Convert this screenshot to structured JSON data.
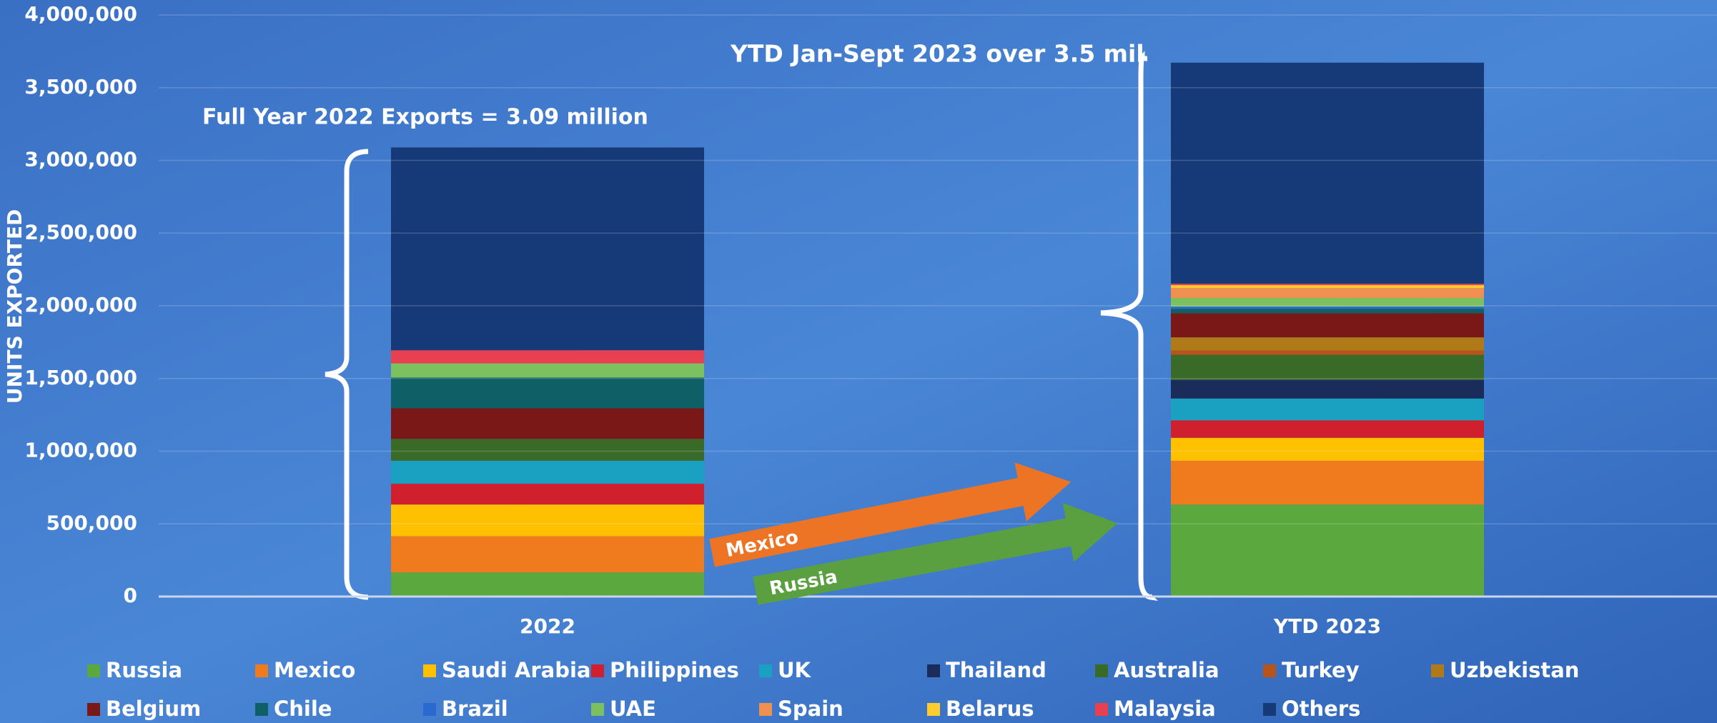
{
  "chart_data": {
    "type": "stacked_bar",
    "y_label": "UNITS EXPORTED",
    "categories": [
      "2022",
      "YTD 2023"
    ],
    "annotations": [
      "Full Year 2022 Exports = 3.09 million",
      "YTD Jan-Sept 2023 over 3.5 mil",
      "Mexico",
      "Russia"
    ],
    "ylim": [
      0,
      4000000
    ],
    "yticks": [
      {
        "value": 0,
        "label": "0"
      },
      {
        "value": 500000,
        "label": "500,000"
      },
      {
        "value": 1000000,
        "label": "1,000,000"
      },
      {
        "value": 1500000,
        "label": "1,500,000"
      },
      {
        "value": 2000000,
        "label": "2,000,000"
      },
      {
        "value": 2500000,
        "label": "2,500,000"
      },
      {
        "value": 3000000,
        "label": "3,000,000"
      },
      {
        "value": 3500000,
        "label": "3,500,000"
      },
      {
        "value": 4000000,
        "label": "4,000,000"
      }
    ],
    "grid": true,
    "legend": "bottom",
    "series": [
      {
        "name": "Russia",
        "color": "#5aa83e",
        "values": [
          166000,
          633000
        ]
      },
      {
        "name": "Mexico",
        "color": "#f07a1e",
        "values": [
          249000,
          301000
        ]
      },
      {
        "name": "Saudi Arabia",
        "color": "#ffc000",
        "values": [
          218000,
          158000
        ]
      },
      {
        "name": "Philippines",
        "color": "#d0202e",
        "values": [
          143000,
          120000
        ]
      },
      {
        "name": "UK",
        "color": "#1aa0c0",
        "values": [
          158000,
          150000
        ]
      },
      {
        "name": "Thailand",
        "color": "#1a2c5a",
        "values": [
          0,
          128000
        ]
      },
      {
        "name": "Australia",
        "color": "#3a6a28",
        "values": [
          150000,
          173000
        ]
      },
      {
        "name": "Turkey",
        "color": "#b8541a",
        "values": [
          0,
          30000
        ]
      },
      {
        "name": "Uzbekistan",
        "color": "#b07a18",
        "values": [
          0,
          90000
        ]
      },
      {
        "name": "Belgium",
        "color": "#7a1818",
        "values": [
          211000,
          166000
        ]
      },
      {
        "name": "Chile",
        "color": "#0e5f66",
        "values": [
          211000,
          30000
        ]
      },
      {
        "name": "Brazil",
        "color": "#2a6ad0",
        "values": [
          0,
          15000
        ]
      },
      {
        "name": "UAE",
        "color": "#7cc060",
        "values": [
          98000,
          60000
        ]
      },
      {
        "name": "Spain",
        "color": "#f09050",
        "values": [
          0,
          68000
        ]
      },
      {
        "name": "Belarus",
        "color": "#ffcc30",
        "values": [
          0,
          20000
        ]
      },
      {
        "name": "Malaysia",
        "color": "#e84050",
        "values": [
          90000,
          10000
        ]
      },
      {
        "name": "Others",
        "color": "#163a78",
        "values": [
          1395000,
          1520000
        ]
      }
    ]
  }
}
